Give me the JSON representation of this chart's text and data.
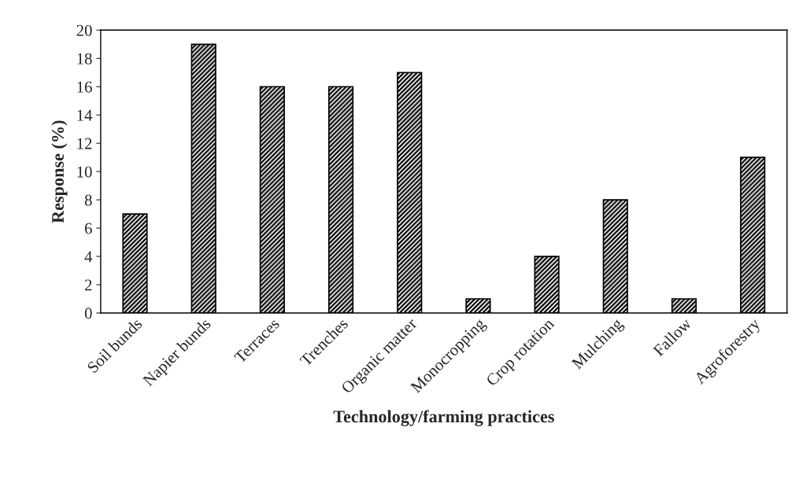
{
  "chart_data": {
    "type": "bar",
    "xlabel": "Technology/farming practices",
    "ylabel": "Response (%)",
    "categories": [
      "Soil bunds",
      "Napier bunds",
      "Terraces",
      "Trenches",
      "Organic matter",
      "Monocropping",
      "Crop rotation",
      "Mulching",
      "Fallow",
      "Agroforestry"
    ],
    "values": [
      7,
      19,
      16,
      16,
      17,
      1,
      4,
      8,
      1,
      11
    ],
    "color": "#000000",
    "ylim": [
      0,
      20
    ],
    "yticks": [
      0,
      2,
      4,
      6,
      8,
      10,
      12,
      14,
      16,
      18,
      20
    ],
    "grid": false
  }
}
